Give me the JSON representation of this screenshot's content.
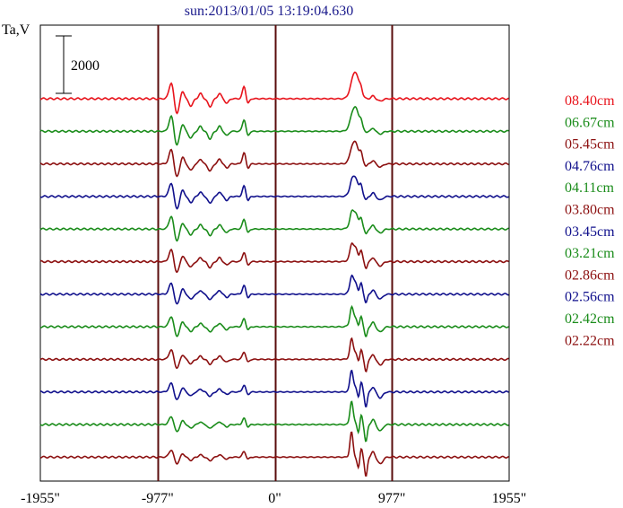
{
  "chart_data": {
    "type": "line",
    "title": "sun:2013/01/05 13:19:04.630",
    "ylabel": "Ta,V",
    "scale_bar_label": "2000",
    "scale_bar_value": 2000,
    "xlim": [
      -1955,
      1955
    ],
    "x_ticks": [
      {
        "value": -1955,
        "label": "-1955\""
      },
      {
        "value": -977,
        "label": "-977\""
      },
      {
        "value": 0,
        "label": "0\""
      },
      {
        "value": 977,
        "label": "977\""
      },
      {
        "value": 1955,
        "label": "1955\""
      }
    ],
    "vertical_lines": [
      -977,
      0,
      977
    ],
    "legend_position": "right",
    "series": [
      {
        "name": "08.40cm",
        "color": "#e8141c"
      },
      {
        "name": "06.67cm",
        "color": "#1a8c1a"
      },
      {
        "name": "05.45cm",
        "color": "#8c1010"
      },
      {
        "name": "04.76cm",
        "color": "#10108c"
      },
      {
        "name": "04.11cm",
        "color": "#1a8c1a"
      },
      {
        "name": "03.80cm",
        "color": "#8c1010"
      },
      {
        "name": "03.45cm",
        "color": "#10108c"
      },
      {
        "name": "03.21cm",
        "color": "#1a8c1a"
      },
      {
        "name": "02.86cm",
        "color": "#8c1010"
      },
      {
        "name": "02.56cm",
        "color": "#10108c"
      },
      {
        "name": "02.42cm",
        "color": "#1a8c1a"
      },
      {
        "name": "02.22cm",
        "color": "#8c1010"
      }
    ]
  }
}
